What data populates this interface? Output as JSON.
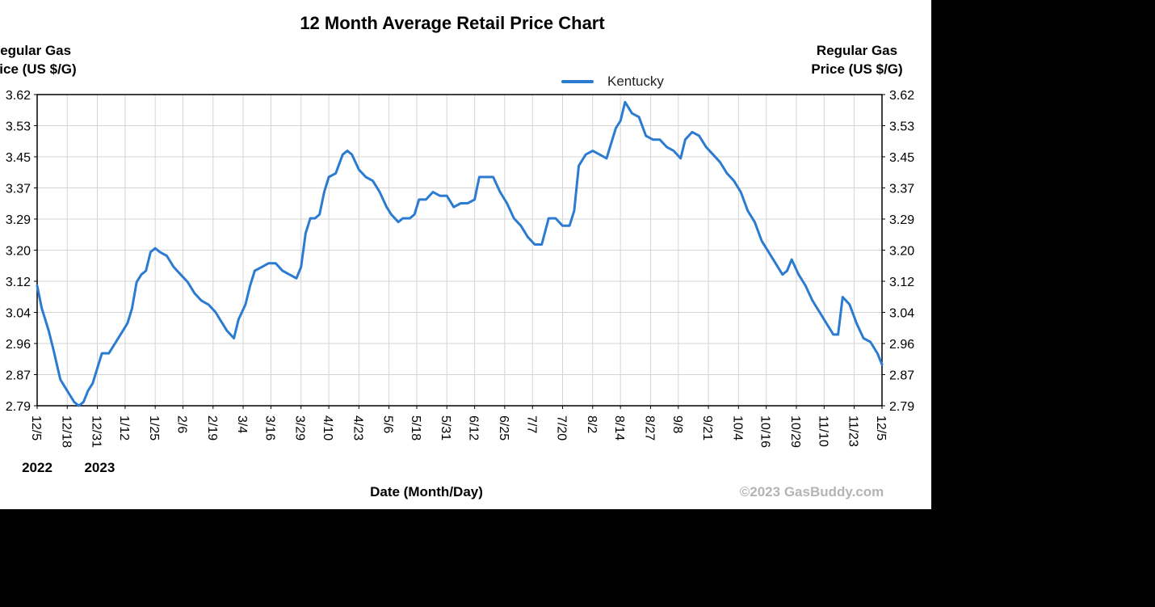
{
  "chart_data": {
    "type": "line",
    "title": "12 Month Average Retail Price Chart",
    "ylabel_left": [
      "Regular Gas",
      "Price (US $/G)"
    ],
    "ylabel_right": [
      "Regular Gas",
      "Price (US $/G)"
    ],
    "xlabel": "Date (Month/Day)",
    "credit": "©2023 GasBuddy.com",
    "legend_position": "top-center",
    "grid": true,
    "ylim": [
      2.79,
      3.62
    ],
    "yticks": [
      "3.62",
      "3.53",
      "3.45",
      "3.37",
      "3.29",
      "3.20",
      "3.12",
      "3.04",
      "2.96",
      "2.87",
      "2.79"
    ],
    "xlim": [
      "2022-12-05",
      "2023-12-05"
    ],
    "xticks": [
      {
        "label": "12/5",
        "date": "2022-12-05"
      },
      {
        "label": "12/18",
        "date": "2022-12-18"
      },
      {
        "label": "12/31",
        "date": "2022-12-31"
      },
      {
        "label": "1/12",
        "date": "2023-01-12"
      },
      {
        "label": "1/25",
        "date": "2023-01-25"
      },
      {
        "label": "2/6",
        "date": "2023-02-06"
      },
      {
        "label": "2/19",
        "date": "2023-02-19"
      },
      {
        "label": "3/4",
        "date": "2023-03-04"
      },
      {
        "label": "3/16",
        "date": "2023-03-16"
      },
      {
        "label": "3/29",
        "date": "2023-03-29"
      },
      {
        "label": "4/10",
        "date": "2023-04-10"
      },
      {
        "label": "4/23",
        "date": "2023-04-23"
      },
      {
        "label": "5/6",
        "date": "2023-05-06"
      },
      {
        "label": "5/18",
        "date": "2023-05-18"
      },
      {
        "label": "5/31",
        "date": "2023-05-31"
      },
      {
        "label": "6/12",
        "date": "2023-06-12"
      },
      {
        "label": "6/25",
        "date": "2023-06-25"
      },
      {
        "label": "7/7",
        "date": "2023-07-07"
      },
      {
        "label": "7/20",
        "date": "2023-07-20"
      },
      {
        "label": "8/2",
        "date": "2023-08-02"
      },
      {
        "label": "8/14",
        "date": "2023-08-14"
      },
      {
        "label": "8/27",
        "date": "2023-08-27"
      },
      {
        "label": "9/8",
        "date": "2023-09-08"
      },
      {
        "label": "9/21",
        "date": "2023-09-21"
      },
      {
        "label": "10/4",
        "date": "2023-10-04"
      },
      {
        "label": "10/16",
        "date": "2023-10-16"
      },
      {
        "label": "10/29",
        "date": "2023-10-29"
      },
      {
        "label": "11/10",
        "date": "2023-11-10"
      },
      {
        "label": "11/23",
        "date": "2023-11-23"
      },
      {
        "label": "12/5",
        "date": "2023-12-05"
      }
    ],
    "year_labels": [
      {
        "label": "2022",
        "date": "2022-12-05"
      },
      {
        "label": "2023",
        "date": "2023-01-01"
      }
    ],
    "series": [
      {
        "name": "Kentucky",
        "color": "#2b7bd1",
        "points": [
          [
            "2022-12-05",
            3.11
          ],
          [
            "2022-12-07",
            3.05
          ],
          [
            "2022-12-10",
            2.99
          ],
          [
            "2022-12-12",
            2.94
          ],
          [
            "2022-12-15",
            2.86
          ],
          [
            "2022-12-17",
            2.84
          ],
          [
            "2022-12-19",
            2.82
          ],
          [
            "2022-12-21",
            2.8
          ],
          [
            "2022-12-23",
            2.79
          ],
          [
            "2022-12-25",
            2.8
          ],
          [
            "2022-12-27",
            2.83
          ],
          [
            "2022-12-29",
            2.85
          ],
          [
            "2022-12-31",
            2.89
          ],
          [
            "2023-01-02",
            2.93
          ],
          [
            "2023-01-05",
            2.93
          ],
          [
            "2023-01-07",
            2.95
          ],
          [
            "2023-01-10",
            2.98
          ],
          [
            "2023-01-13",
            3.01
          ],
          [
            "2023-01-15",
            3.05
          ],
          [
            "2023-01-17",
            3.12
          ],
          [
            "2023-01-19",
            3.14
          ],
          [
            "2023-01-21",
            3.15
          ],
          [
            "2023-01-23",
            3.2
          ],
          [
            "2023-01-25",
            3.21
          ],
          [
            "2023-01-27",
            3.2
          ],
          [
            "2023-01-30",
            3.19
          ],
          [
            "2023-02-02",
            3.16
          ],
          [
            "2023-02-05",
            3.14
          ],
          [
            "2023-02-08",
            3.12
          ],
          [
            "2023-02-11",
            3.09
          ],
          [
            "2023-02-14",
            3.07
          ],
          [
            "2023-02-17",
            3.06
          ],
          [
            "2023-02-20",
            3.04
          ],
          [
            "2023-02-22",
            3.02
          ],
          [
            "2023-02-25",
            2.99
          ],
          [
            "2023-02-28",
            2.97
          ],
          [
            "2023-03-02",
            3.02
          ],
          [
            "2023-03-05",
            3.06
          ],
          [
            "2023-03-07",
            3.11
          ],
          [
            "2023-03-09",
            3.15
          ],
          [
            "2023-03-12",
            3.16
          ],
          [
            "2023-03-15",
            3.17
          ],
          [
            "2023-03-18",
            3.17
          ],
          [
            "2023-03-21",
            3.15
          ],
          [
            "2023-03-24",
            3.14
          ],
          [
            "2023-03-27",
            3.13
          ],
          [
            "2023-03-29",
            3.16
          ],
          [
            "2023-03-31",
            3.25
          ],
          [
            "2023-04-02",
            3.29
          ],
          [
            "2023-04-04",
            3.29
          ],
          [
            "2023-04-06",
            3.3
          ],
          [
            "2023-04-08",
            3.36
          ],
          [
            "2023-04-10",
            3.4
          ],
          [
            "2023-04-13",
            3.41
          ],
          [
            "2023-04-16",
            3.46
          ],
          [
            "2023-04-18",
            3.47
          ],
          [
            "2023-04-20",
            3.46
          ],
          [
            "2023-04-23",
            3.42
          ],
          [
            "2023-04-26",
            3.4
          ],
          [
            "2023-04-29",
            3.39
          ],
          [
            "2023-05-02",
            3.36
          ],
          [
            "2023-05-05",
            3.32
          ],
          [
            "2023-05-07",
            3.3
          ],
          [
            "2023-05-10",
            3.28
          ],
          [
            "2023-05-12",
            3.29
          ],
          [
            "2023-05-15",
            3.29
          ],
          [
            "2023-05-17",
            3.3
          ],
          [
            "2023-05-19",
            3.34
          ],
          [
            "2023-05-22",
            3.34
          ],
          [
            "2023-05-25",
            3.36
          ],
          [
            "2023-05-28",
            3.35
          ],
          [
            "2023-05-31",
            3.35
          ],
          [
            "2023-06-03",
            3.32
          ],
          [
            "2023-06-06",
            3.33
          ],
          [
            "2023-06-09",
            3.33
          ],
          [
            "2023-06-12",
            3.34
          ],
          [
            "2023-06-14",
            3.4
          ],
          [
            "2023-06-17",
            3.4
          ],
          [
            "2023-06-20",
            3.4
          ],
          [
            "2023-06-23",
            3.36
          ],
          [
            "2023-06-26",
            3.33
          ],
          [
            "2023-06-29",
            3.29
          ],
          [
            "2023-07-02",
            3.27
          ],
          [
            "2023-07-05",
            3.24
          ],
          [
            "2023-07-08",
            3.22
          ],
          [
            "2023-07-11",
            3.22
          ],
          [
            "2023-07-14",
            3.29
          ],
          [
            "2023-07-17",
            3.29
          ],
          [
            "2023-07-20",
            3.27
          ],
          [
            "2023-07-23",
            3.27
          ],
          [
            "2023-07-25",
            3.31
          ],
          [
            "2023-07-27",
            3.43
          ],
          [
            "2023-07-30",
            3.46
          ],
          [
            "2023-08-02",
            3.47
          ],
          [
            "2023-08-05",
            3.46
          ],
          [
            "2023-08-08",
            3.45
          ],
          [
            "2023-08-10",
            3.49
          ],
          [
            "2023-08-12",
            3.53
          ],
          [
            "2023-08-14",
            3.55
          ],
          [
            "2023-08-16",
            3.6
          ],
          [
            "2023-08-19",
            3.57
          ],
          [
            "2023-08-22",
            3.56
          ],
          [
            "2023-08-25",
            3.51
          ],
          [
            "2023-08-28",
            3.5
          ],
          [
            "2023-08-31",
            3.5
          ],
          [
            "2023-09-03",
            3.48
          ],
          [
            "2023-09-06",
            3.47
          ],
          [
            "2023-09-09",
            3.45
          ],
          [
            "2023-09-11",
            3.5
          ],
          [
            "2023-09-14",
            3.52
          ],
          [
            "2023-09-17",
            3.51
          ],
          [
            "2023-09-20",
            3.48
          ],
          [
            "2023-09-23",
            3.46
          ],
          [
            "2023-09-26",
            3.44
          ],
          [
            "2023-09-29",
            3.41
          ],
          [
            "2023-10-02",
            3.39
          ],
          [
            "2023-10-05",
            3.36
          ],
          [
            "2023-10-08",
            3.31
          ],
          [
            "2023-10-11",
            3.28
          ],
          [
            "2023-10-14",
            3.23
          ],
          [
            "2023-10-17",
            3.2
          ],
          [
            "2023-10-20",
            3.17
          ],
          [
            "2023-10-23",
            3.14
          ],
          [
            "2023-10-25",
            3.15
          ],
          [
            "2023-10-27",
            3.18
          ],
          [
            "2023-10-30",
            3.14
          ],
          [
            "2023-11-02",
            3.11
          ],
          [
            "2023-11-05",
            3.07
          ],
          [
            "2023-11-08",
            3.04
          ],
          [
            "2023-11-11",
            3.01
          ],
          [
            "2023-11-14",
            2.98
          ],
          [
            "2023-11-16",
            2.98
          ],
          [
            "2023-11-18",
            3.08
          ],
          [
            "2023-11-21",
            3.06
          ],
          [
            "2023-11-24",
            3.01
          ],
          [
            "2023-11-27",
            2.97
          ],
          [
            "2023-11-30",
            2.96
          ],
          [
            "2023-12-03",
            2.93
          ],
          [
            "2023-12-05",
            2.9
          ]
        ]
      }
    ]
  }
}
